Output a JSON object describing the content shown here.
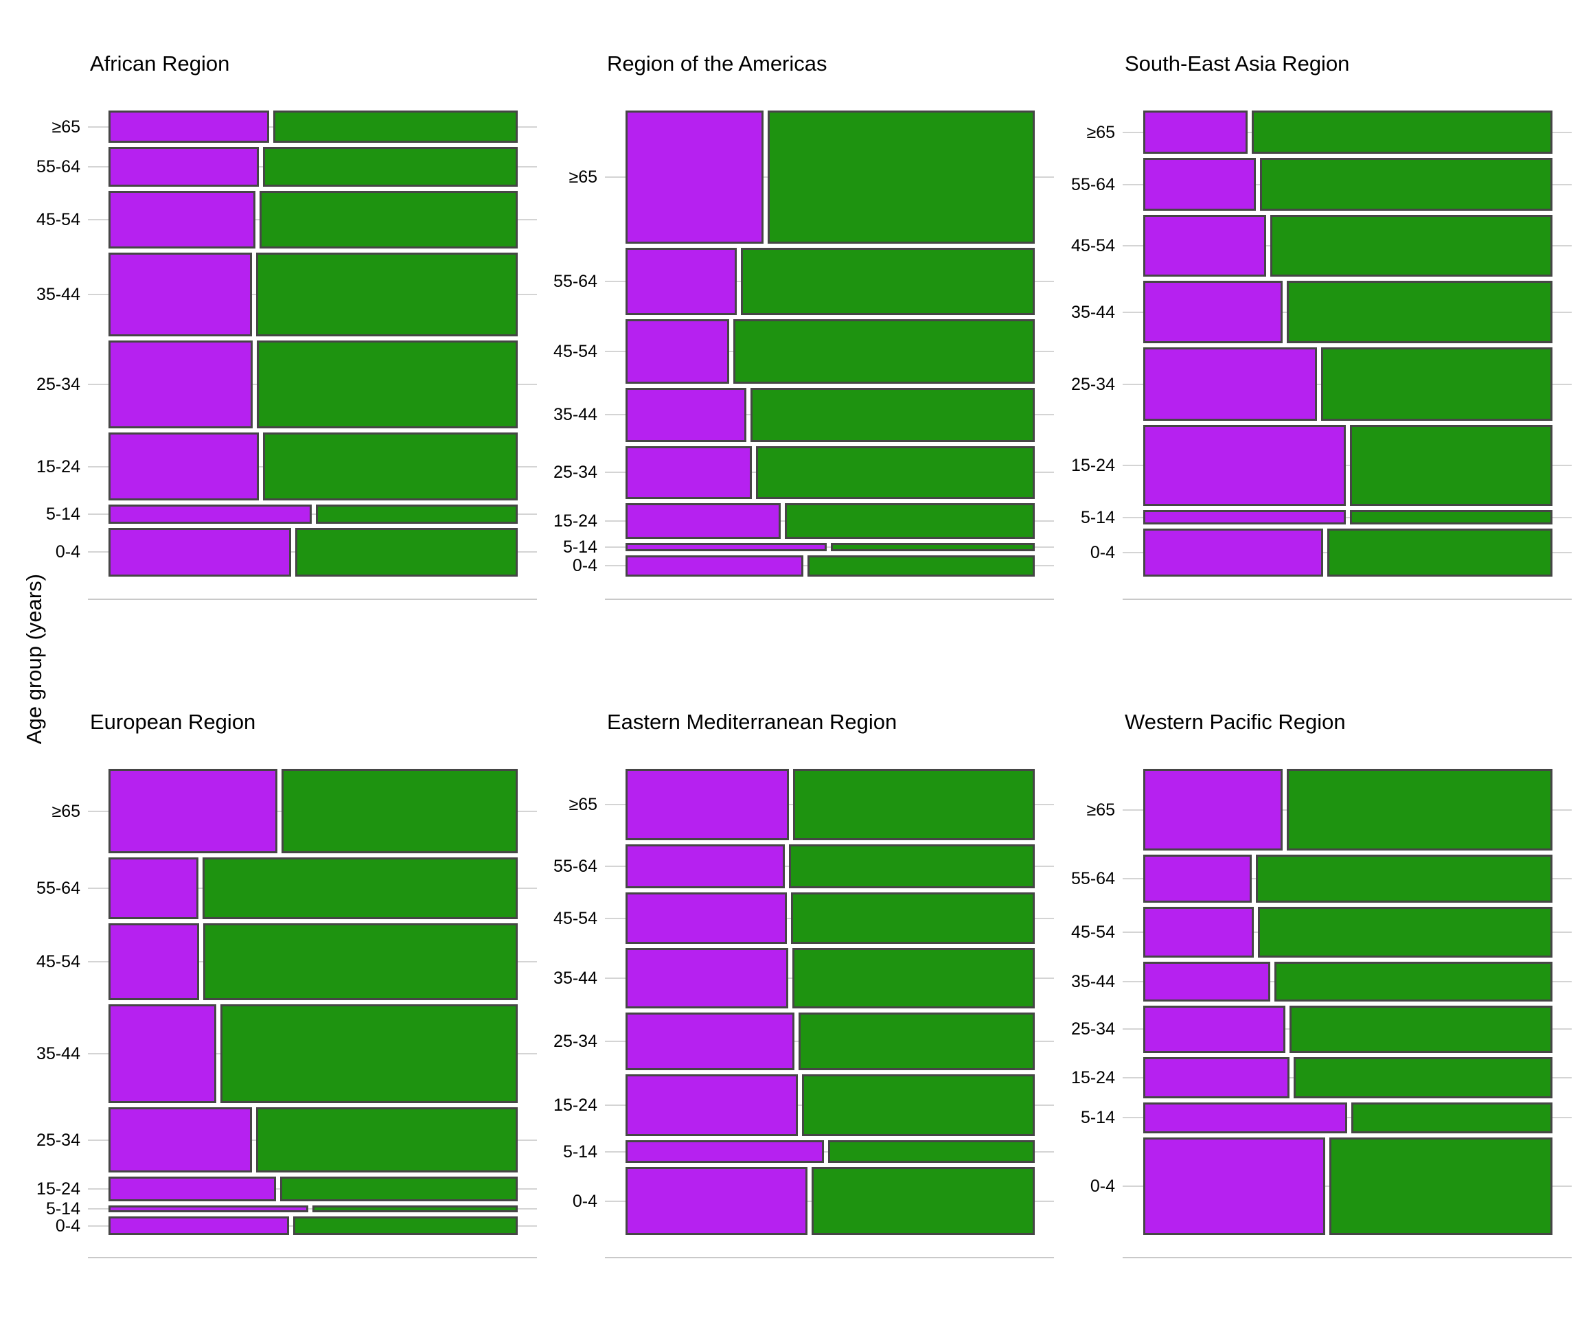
{
  "chart_data": {
    "type": "mosaic",
    "description": "Mosaic plots per WHO region: row height proportional to age-group share, horizontal split between purple and green segments",
    "ylabel": "Age group (years)",
    "age_groups": [
      "≥65",
      "55-64",
      "45-54",
      "35-44",
      "25-34",
      "15-24",
      "5-14",
      "0-4"
    ],
    "colors": {
      "purple_segment": "#b621f0",
      "green_segment": "#1e9310",
      "bar_border": "#464646",
      "gridline": "#d4d4d4",
      "text": "#000000"
    },
    "legend_position": "none",
    "grid": "horizontal ticks only",
    "panels": [
      {
        "title": "African Region",
        "rows": [
          {
            "age": "≥65",
            "height_share": 0.074,
            "purple_share": 0.397
          },
          {
            "age": "55-64",
            "height_share": 0.09,
            "purple_share": 0.372
          },
          {
            "age": "45-54",
            "height_share": 0.133,
            "purple_share": 0.364
          },
          {
            "age": "35-44",
            "height_share": 0.191,
            "purple_share": 0.355
          },
          {
            "age": "25-34",
            "height_share": 0.201,
            "purple_share": 0.358
          },
          {
            "age": "15-24",
            "height_share": 0.155,
            "purple_share": 0.372
          },
          {
            "age": "5-14",
            "height_share": 0.043,
            "purple_share": 0.502
          },
          {
            "age": "0-4",
            "height_share": 0.112,
            "purple_share": 0.451
          }
        ]
      },
      {
        "title": "Region of the Americas",
        "rows": [
          {
            "age": "≥65",
            "height_share": 0.305,
            "purple_share": 0.343
          },
          {
            "age": "55-64",
            "height_share": 0.154,
            "purple_share": 0.277
          },
          {
            "age": "45-54",
            "height_share": 0.148,
            "purple_share": 0.258
          },
          {
            "age": "35-44",
            "height_share": 0.124,
            "purple_share": 0.3
          },
          {
            "age": "25-34",
            "height_share": 0.121,
            "purple_share": 0.314
          },
          {
            "age": "15-24",
            "height_share": 0.082,
            "purple_share": 0.385
          },
          {
            "age": "5-14",
            "height_share": 0.019,
            "purple_share": 0.497
          },
          {
            "age": "0-4",
            "height_share": 0.049,
            "purple_share": 0.439
          }
        ]
      },
      {
        "title": "South-East Asia Region",
        "rows": [
          {
            "age": "≥65",
            "height_share": 0.099,
            "purple_share": 0.26
          },
          {
            "age": "55-64",
            "height_share": 0.121,
            "purple_share": 0.28
          },
          {
            "age": "45-54",
            "height_share": 0.142,
            "purple_share": 0.305
          },
          {
            "age": "35-44",
            "height_share": 0.143,
            "purple_share": 0.345
          },
          {
            "age": "25-34",
            "height_share": 0.167,
            "purple_share": 0.43
          },
          {
            "age": "15-24",
            "height_share": 0.186,
            "purple_share": 0.5
          },
          {
            "age": "5-14",
            "height_share": 0.033,
            "purple_share": 0.5
          },
          {
            "age": "0-4",
            "height_share": 0.11,
            "purple_share": 0.445
          }
        ]
      },
      {
        "title": "European Region",
        "rows": [
          {
            "age": "≥65",
            "height_share": 0.194,
            "purple_share": 0.418
          },
          {
            "age": "55-64",
            "height_share": 0.14,
            "purple_share": 0.225
          },
          {
            "age": "45-54",
            "height_share": 0.177,
            "purple_share": 0.227
          },
          {
            "age": "35-44",
            "height_share": 0.226,
            "purple_share": 0.268
          },
          {
            "age": "25-34",
            "height_share": 0.15,
            "purple_share": 0.355
          },
          {
            "age": "15-24",
            "height_share": 0.056,
            "purple_share": 0.414
          },
          {
            "age": "5-14",
            "height_share": 0.016,
            "purple_share": 0.494
          },
          {
            "age": "0-4",
            "height_share": 0.042,
            "purple_share": 0.447
          }
        ]
      },
      {
        "title": "Eastern Mediterranean Region",
        "rows": [
          {
            "age": "≥65",
            "height_share": 0.163,
            "purple_share": 0.405
          },
          {
            "age": "55-64",
            "height_share": 0.101,
            "purple_share": 0.395
          },
          {
            "age": "45-54",
            "height_share": 0.118,
            "purple_share": 0.399
          },
          {
            "age": "35-44",
            "height_share": 0.137,
            "purple_share": 0.403
          },
          {
            "age": "25-34",
            "height_share": 0.133,
            "purple_share": 0.418
          },
          {
            "age": "15-24",
            "height_share": 0.141,
            "purple_share": 0.426
          },
          {
            "age": "5-14",
            "height_share": 0.052,
            "purple_share": 0.49
          },
          {
            "age": "0-4",
            "height_share": 0.155,
            "purple_share": 0.449
          }
        ]
      },
      {
        "title": "Western Pacific Region",
        "rows": [
          {
            "age": "≥65",
            "height_share": 0.187,
            "purple_share": 0.346
          },
          {
            "age": "55-64",
            "height_share": 0.11,
            "purple_share": 0.27
          },
          {
            "age": "45-54",
            "height_share": 0.116,
            "purple_share": 0.275
          },
          {
            "age": "35-44",
            "height_share": 0.09,
            "purple_share": 0.315
          },
          {
            "age": "25-34",
            "height_share": 0.108,
            "purple_share": 0.353
          },
          {
            "age": "15-24",
            "height_share": 0.094,
            "purple_share": 0.363
          },
          {
            "age": "5-14",
            "height_share": 0.071,
            "purple_share": 0.503
          },
          {
            "age": "0-4",
            "height_share": 0.223,
            "purple_share": 0.45
          }
        ]
      }
    ]
  }
}
